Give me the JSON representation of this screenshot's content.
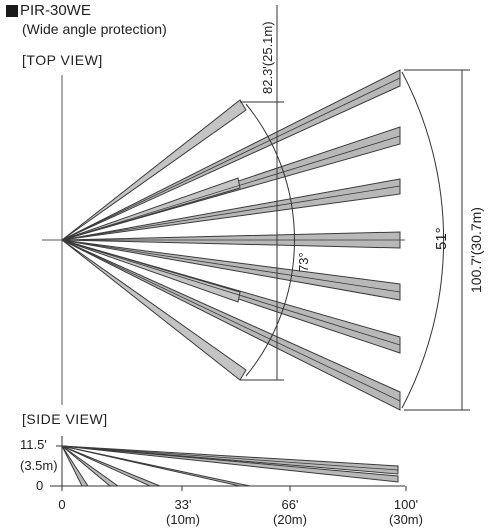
{
  "header": {
    "title": "PIR-30WE",
    "subtitle": "(Wide angle protection)"
  },
  "top_view": {
    "label": "[TOP VIEW]",
    "dim_width": "82.3'(25.1m)",
    "angle_inner": "73°",
    "angle_outer": "51°",
    "dim_length": "100.7'(30.7m)"
  },
  "side_view": {
    "label": "[SIDE VIEW]",
    "height_ft": "11.5'",
    "height_m": "(3.5m)",
    "y_zero": "0",
    "x_ticks": [
      {
        "ft": "0",
        "m": ""
      },
      {
        "ft": "33'",
        "m": "(10m)"
      },
      {
        "ft": "66'",
        "m": "(20m)"
      },
      {
        "ft": "100'",
        "m": "(30m)"
      }
    ]
  },
  "colors": {
    "beam_fill": "#b8b8b8",
    "beam_stroke": "#3a3a3a",
    "line": "#333333"
  }
}
